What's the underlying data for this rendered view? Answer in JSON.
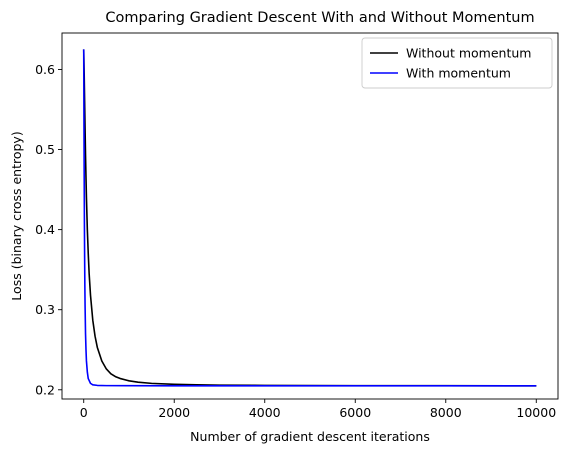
{
  "chart_data": {
    "type": "line",
    "title": "Comparing Gradient Descent With and Without Momentum",
    "xlabel": "Number of gradient descent iterations",
    "ylabel": "Loss (binary cross entropy)",
    "xlim": [
      -480,
      10480
    ],
    "ylim": [
      0.1885,
      0.6455
    ],
    "xticks": [
      0,
      2000,
      4000,
      6000,
      8000,
      10000
    ],
    "yticks": [
      0.2,
      0.3,
      0.4,
      0.5,
      0.6
    ],
    "xtick_labels": [
      "0",
      "2000",
      "4000",
      "6000",
      "8000",
      "10000"
    ],
    "ytick_labels": [
      "0.2",
      "0.3",
      "0.4",
      "0.5",
      "0.6"
    ],
    "grid": false,
    "legend_position": "top-right",
    "series": [
      {
        "name": "Without momentum",
        "color": "#000000",
        "x": [
          0,
          10,
          20,
          30,
          40,
          50,
          60,
          80,
          100,
          120,
          150,
          200,
          250,
          300,
          400,
          500,
          600,
          700,
          800,
          1000,
          1200,
          1500,
          2000,
          2500,
          3000,
          4000,
          5000,
          6000,
          8000,
          10000
        ],
        "y": [
          0.625,
          0.595,
          0.56,
          0.525,
          0.493,
          0.465,
          0.44,
          0.4,
          0.37,
          0.345,
          0.318,
          0.287,
          0.267,
          0.253,
          0.236,
          0.226,
          0.22,
          0.2165,
          0.2142,
          0.2112,
          0.2095,
          0.208,
          0.2068,
          0.2062,
          0.2058,
          0.2055,
          0.2053,
          0.2052,
          0.2051,
          0.205
        ]
      },
      {
        "name": "With momentum",
        "color": "#0000ff",
        "x": [
          0,
          5,
          10,
          15,
          20,
          25,
          30,
          40,
          50,
          60,
          80,
          100,
          150,
          200,
          300,
          500,
          1000,
          2000,
          5000,
          10000
        ],
        "y": [
          0.625,
          0.54,
          0.47,
          0.41,
          0.365,
          0.33,
          0.305,
          0.27,
          0.25,
          0.236,
          0.222,
          0.214,
          0.208,
          0.2062,
          0.2055,
          0.2052,
          0.2051,
          0.205,
          0.205,
          0.205
        ]
      }
    ]
  }
}
